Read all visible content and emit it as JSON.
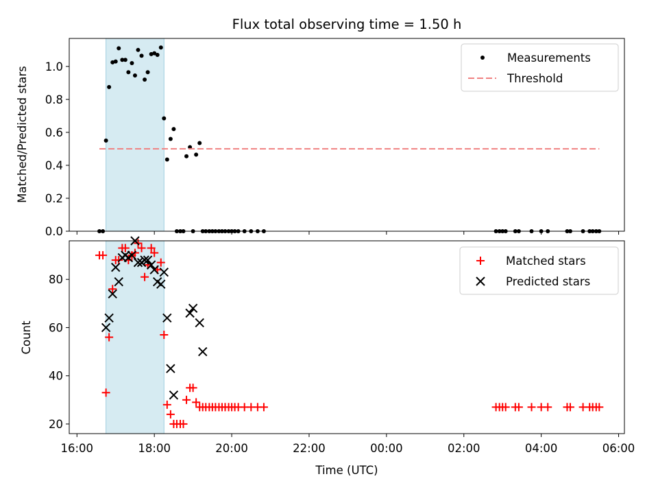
{
  "chart_data": [
    {
      "type": "scatter",
      "title": "Flux total observing time = 1.50 h",
      "xlabel": "",
      "ylabel": "Matched/Predicted stars",
      "xlim": [
        -0.2,
        14.15
      ],
      "ylim": [
        0,
        1.17
      ],
      "yticks": [
        0.0,
        0.2,
        0.4,
        0.6,
        0.8,
        1.0
      ],
      "ytick_labels": [
        "0.0",
        "0.2",
        "0.4",
        "0.6",
        "0.8",
        "1.0"
      ],
      "shaded_span": [
        0.75,
        2.25
      ],
      "legend_position": "top-right",
      "series": [
        {
          "name": "Measurements",
          "kind": "points",
          "color": "#000000",
          "x": [
            0.58,
            0.67,
            0.75,
            0.83,
            0.92,
            1.0,
            1.08,
            1.17,
            1.25,
            1.33,
            1.42,
            1.5,
            1.58,
            1.67,
            1.75,
            1.83,
            1.92,
            2.0,
            2.08,
            2.17,
            2.25,
            2.33,
            2.42,
            2.5,
            2.58,
            2.67,
            2.75,
            2.83,
            2.92,
            3.0,
            3.08,
            3.17,
            3.25,
            3.33,
            3.42,
            3.5,
            3.58,
            3.67,
            3.75,
            3.83,
            3.92,
            4.0,
            4.08,
            4.17,
            4.33,
            4.5,
            4.67,
            4.83,
            10.83,
            10.92,
            11.0,
            11.08,
            11.33,
            11.42,
            11.75,
            12.0,
            12.17,
            12.67,
            12.75,
            13.08,
            13.25,
            13.33,
            13.42,
            13.5
          ],
          "y": [
            0.0,
            0.0,
            0.55,
            0.875,
            1.025,
            1.03,
            1.11,
            1.04,
            1.04,
            0.965,
            1.02,
            0.945,
            1.1,
            1.065,
            0.92,
            0.965,
            1.075,
            1.08,
            1.07,
            1.115,
            0.685,
            0.435,
            0.56,
            0.62,
            0.0,
            0.0,
            0.0,
            0.455,
            0.51,
            0.0,
            0.465,
            0.535,
            0.0,
            0.0,
            0.0,
            0.0,
            0.0,
            0.0,
            0.0,
            0.0,
            0.0,
            0.0,
            0.0,
            0.0,
            0.0,
            0.0,
            0.0,
            0.0,
            0.0,
            0.0,
            0.0,
            0.0,
            0.0,
            0.0,
            0.0,
            0.0,
            0.0,
            0.0,
            0.0,
            0.0,
            0.0,
            0.0,
            0.0,
            0.0
          ]
        },
        {
          "name": "Threshold",
          "kind": "dashed-line",
          "color": "#f08080",
          "x": [
            0.58,
            13.5
          ],
          "y": [
            0.5,
            0.5
          ]
        }
      ]
    },
    {
      "type": "scatter",
      "title": "",
      "xlabel": "Time (UTC)",
      "ylabel": "Count",
      "xlim": [
        -0.2,
        14.15
      ],
      "ylim": [
        16,
        96
      ],
      "yticks": [
        20,
        40,
        60,
        80
      ],
      "ytick_labels": [
        "20",
        "40",
        "60",
        "80"
      ],
      "xticks": [
        0,
        2,
        4,
        6,
        8,
        10,
        12,
        14
      ],
      "xtick_labels": [
        "16:00",
        "18:00",
        "20:00",
        "22:00",
        "00:00",
        "02:00",
        "04:00",
        "06:00"
      ],
      "shaded_span": [
        0.75,
        2.25
      ],
      "legend_position": "top-right",
      "series": [
        {
          "name": "Matched stars",
          "kind": "plus",
          "color": "#ff0000",
          "x": [
            0.58,
            0.67,
            0.75,
            0.83,
            0.92,
            1.0,
            1.08,
            1.17,
            1.25,
            1.33,
            1.42,
            1.5,
            1.58,
            1.67,
            1.75,
            1.83,
            1.92,
            2.0,
            2.08,
            2.17,
            2.25,
            2.33,
            2.42,
            2.5,
            2.58,
            2.67,
            2.75,
            2.83,
            2.92,
            3.0,
            3.08,
            3.17,
            3.25,
            3.33,
            3.42,
            3.5,
            3.58,
            3.67,
            3.75,
            3.83,
            3.92,
            4.0,
            4.08,
            4.17,
            4.33,
            4.5,
            4.67,
            4.83,
            10.83,
            10.92,
            11.0,
            11.08,
            11.33,
            11.42,
            11.75,
            12.0,
            12.17,
            12.67,
            12.75,
            13.08,
            13.25,
            13.33,
            13.42,
            13.5
          ],
          "y": [
            90,
            90,
            33,
            56,
            76,
            88,
            88,
            93,
            93,
            88,
            90,
            91,
            95,
            93,
            81,
            86,
            93,
            91,
            84,
            87,
            57,
            28,
            24,
            20,
            20,
            20,
            20,
            30,
            35,
            35,
            29,
            27,
            27,
            27,
            27,
            27,
            27,
            27,
            27,
            27,
            27,
            27,
            27,
            27,
            27,
            27,
            27,
            27,
            27,
            27,
            27,
            27,
            27,
            27,
            27,
            27,
            27,
            27,
            27,
            27,
            27,
            27,
            27,
            27
          ]
        },
        {
          "name": "Predicted stars",
          "kind": "x",
          "color": "#000000",
          "x": [
            0.75,
            0.83,
            0.92,
            1.0,
            1.08,
            1.17,
            1.25,
            1.33,
            1.42,
            1.5,
            1.58,
            1.67,
            1.75,
            1.83,
            1.92,
            2.0,
            2.08,
            2.17,
            2.25,
            2.33,
            2.42,
            2.5,
            2.92,
            3.0,
            3.17,
            3.25
          ],
          "y": [
            60,
            64,
            74,
            85,
            79,
            89,
            90,
            89,
            90,
            96,
            87,
            87,
            88,
            88,
            86,
            84,
            79,
            78,
            83,
            64,
            43,
            32,
            66,
            68,
            62,
            50
          ]
        }
      ]
    }
  ]
}
